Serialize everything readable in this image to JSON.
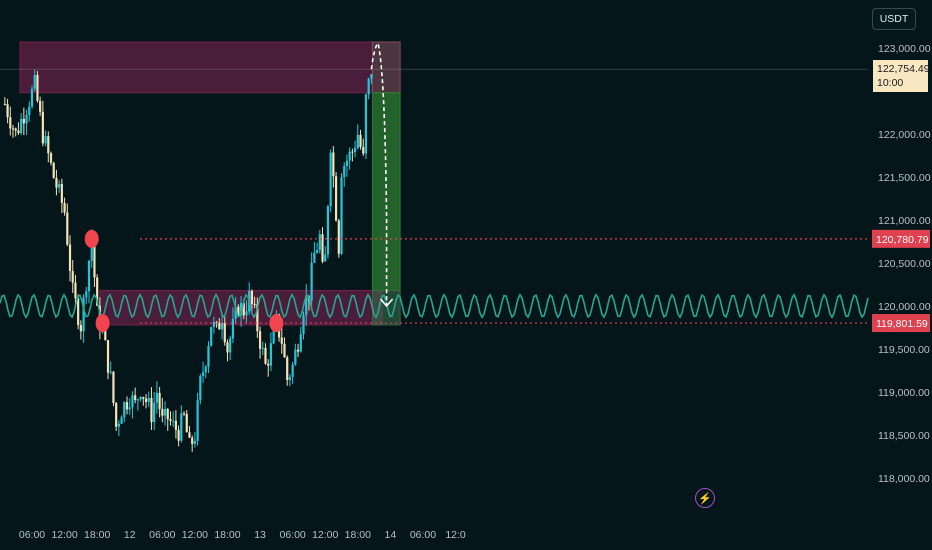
{
  "header": {
    "currency_label": "USDT"
  },
  "price_tag": {
    "price": "122,754.49",
    "countdown": "10:00"
  },
  "levels": [
    {
      "value": 120780.79,
      "label": "120,780.79"
    },
    {
      "value": 119801.59,
      "label": "119,801.59"
    }
  ],
  "colors": {
    "background": "#04161a",
    "up_candle": "#26c6da",
    "down_candle": "#f3e3b6",
    "supply_zone": "#7a2350",
    "target_zone": "#2e7d32",
    "level_line": "#e0414e",
    "wave": "#27a690"
  },
  "event_icon": "lightning-icon",
  "chart_data": {
    "type": "candlestick",
    "title": "",
    "xlabel": "",
    "ylabel": "",
    "ylim": [
      117600,
      123400
    ],
    "y_ticks": [
      118000,
      118500,
      119000,
      119500,
      120000,
      120500,
      121000,
      121500,
      122000,
      122500,
      123000
    ],
    "y_tick_labels": [
      "118,000.00",
      "118,500.00",
      "119,000.00",
      "119,500.00",
      "120,000.00",
      "120,500.00",
      "121,000.00",
      "121,500.00",
      "122,000.00",
      "122,500.00",
      "123,000.00"
    ],
    "x_tick_labels": [
      "06:00",
      "12:00",
      "18:00",
      "12",
      "06:00",
      "12:00",
      "18:00",
      "13",
      "06:00",
      "12:00",
      "18:00",
      "14",
      "06:00",
      "12:0"
    ],
    "x_tick_hours": [
      6,
      12,
      18,
      24,
      30,
      36,
      42,
      48,
      54,
      60,
      66,
      72,
      78,
      84
    ],
    "hours_per_candle": 0.5,
    "close_path": [
      [
        1,
        122350
      ],
      [
        3,
        122000
      ],
      [
        6.5,
        122560
      ],
      [
        8,
        122000
      ],
      [
        10,
        121500
      ],
      [
        12,
        121100
      ],
      [
        13.5,
        120150
      ],
      [
        15,
        119780
      ],
      [
        16,
        120300
      ],
      [
        17,
        120780
      ],
      [
        18,
        119900
      ],
      [
        19,
        119700
      ],
      [
        20.5,
        119150
      ],
      [
        21.5,
        118600
      ],
      [
        22.5,
        118800
      ],
      [
        24,
        118950
      ],
      [
        25,
        118850
      ],
      [
        26,
        119050
      ],
      [
        27,
        118900
      ],
      [
        28,
        118750
      ],
      [
        29,
        119000
      ],
      [
        30,
        118650
      ],
      [
        31,
        118700
      ],
      [
        32,
        118600
      ],
      [
        33,
        118550
      ],
      [
        34,
        118700
      ],
      [
        35,
        118350
      ],
      [
        36,
        118500
      ],
      [
        37,
        119100
      ],
      [
        38,
        119400
      ],
      [
        39,
        119800
      ],
      [
        40,
        119700
      ],
      [
        41,
        119900
      ],
      [
        42,
        119500
      ],
      [
        43,
        119750
      ],
      [
        44,
        120000
      ],
      [
        45,
        119950
      ],
      [
        46,
        120100
      ],
      [
        47,
        119900
      ],
      [
        48,
        119600
      ],
      [
        49,
        119300
      ],
      [
        50,
        119500
      ],
      [
        51,
        119801.59
      ],
      [
        52,
        119600
      ],
      [
        53,
        119150
      ],
      [
        54,
        119300
      ],
      [
        55,
        119600
      ],
      [
        56,
        120000
      ],
      [
        57,
        120150
      ],
      [
        58,
        120600
      ],
      [
        59,
        120800
      ],
      [
        59.5,
        120400
      ],
      [
        60,
        120550
      ],
      [
        61,
        121900
      ],
      [
        62,
        121100
      ],
      [
        62.5,
        120700
      ],
      [
        63,
        121600
      ],
      [
        64,
        121700
      ],
      [
        65,
        121800
      ],
      [
        66,
        122000
      ],
      [
        67,
        121700
      ],
      [
        67.5,
        122400
      ],
      [
        68.5,
        122754.49
      ]
    ],
    "zones": [
      {
        "name": "supply_upper",
        "y1": 122480,
        "y2": 123070,
        "x1": 0,
        "x2": 68.7,
        "color": "#7a2350"
      },
      {
        "name": "demand_lower",
        "y1": 119780,
        "y2": 120180,
        "x1": 18.5,
        "x2": 70.5,
        "color": "#7a2350"
      },
      {
        "name": "stop_zone",
        "y1": 122480,
        "y2": 123070,
        "x1": 68.7,
        "x2": 73.8,
        "color": "#8a5060"
      },
      {
        "name": "target_zone",
        "y1": 120180,
        "y2": 122480,
        "x1": 68.7,
        "x2": 73.8,
        "color": "#2e7d32"
      },
      {
        "name": "target_bottom",
        "y1": 119780,
        "y2": 120180,
        "x1": 68.7,
        "x2": 73.8,
        "color": "#3a6a4a"
      }
    ],
    "level_lines": [
      120780.79,
      119801.59
    ],
    "markers": [
      {
        "hour": 17,
        "value": 120780
      },
      {
        "hour": 19,
        "value": 119801
      },
      {
        "hour": 51,
        "value": 119801
      }
    ],
    "projection": [
      [
        68.5,
        122754
      ],
      [
        69.8,
        123040
      ],
      [
        71,
        122850
      ],
      [
        71.3,
        121000
      ],
      [
        71.3,
        120000
      ]
    ],
    "wave": {
      "center": 120000,
      "amplitude": 130,
      "period_hours": 2.8
    }
  }
}
